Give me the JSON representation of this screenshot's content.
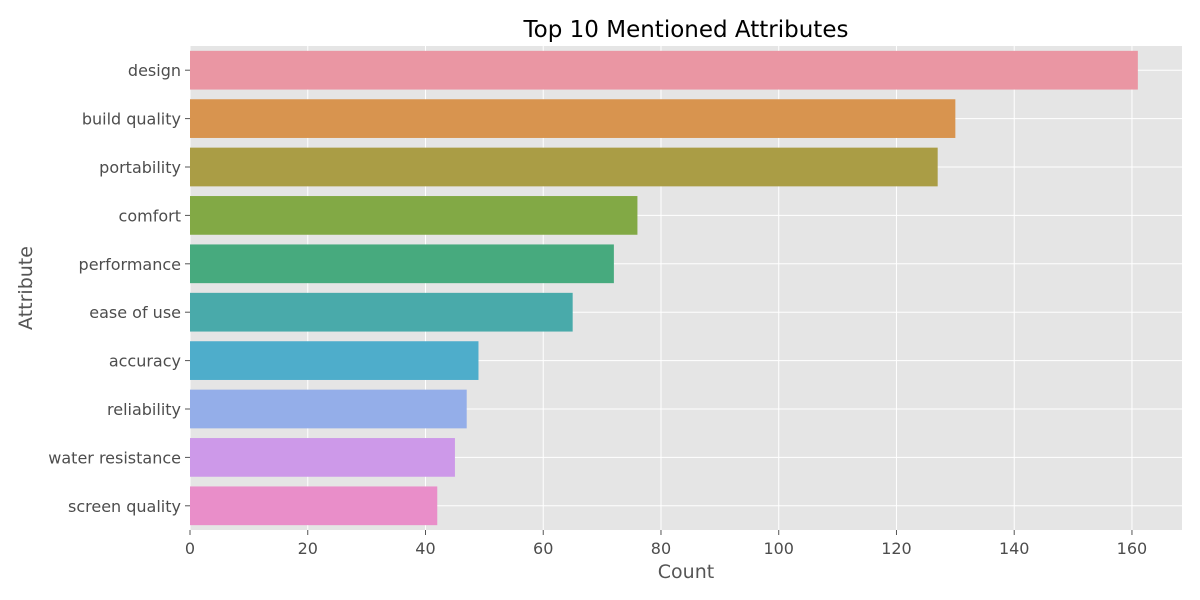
{
  "chart_data": {
    "type": "bar",
    "orientation": "horizontal",
    "title": "Top 10 Mentioned Attributes",
    "xlabel": "Count",
    "ylabel": "Attribute",
    "categories": [
      "design",
      "build quality",
      "portability",
      "comfort",
      "performance",
      "ease of use",
      "accuracy",
      "reliability",
      "water resistance",
      "screen quality"
    ],
    "values": [
      161,
      130,
      127,
      76,
      72,
      65,
      49,
      47,
      45,
      42
    ],
    "colors": [
      "#ea96a3",
      "#d8944f",
      "#aa9d45",
      "#82a945",
      "#47aa7e",
      "#49aaaa",
      "#4eadcb",
      "#94aee9",
      "#cd99e9",
      "#e98ec9"
    ],
    "xlim": [
      0,
      168.5
    ],
    "xticks": [
      0,
      20,
      40,
      60,
      80,
      100,
      120,
      140,
      160
    ],
    "grid": true,
    "style": "ggplot",
    "background": "#e5e5e5"
  }
}
